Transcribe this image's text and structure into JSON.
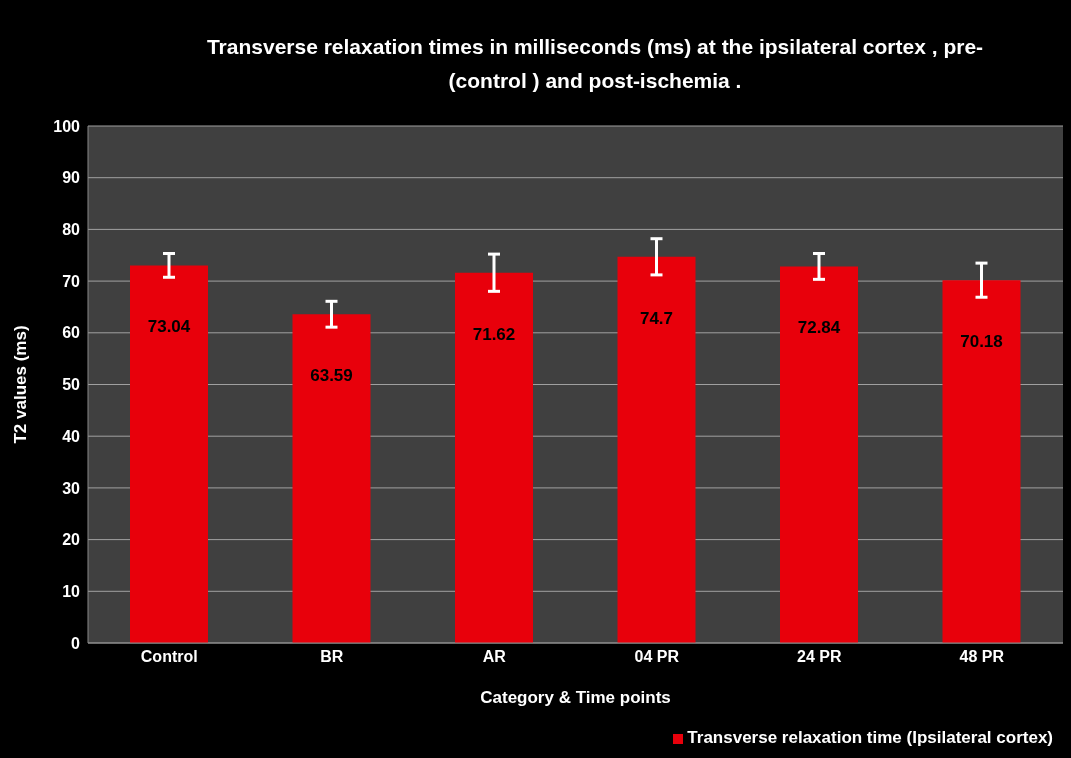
{
  "chart_data": {
    "type": "bar",
    "title": "Transverse relaxation times in milliseconds (ms) at the  ipsilateral cortex , pre-(control ) and post-ischemia .",
    "xlabel": "Category & Time points",
    "ylabel": "T2 values  (ms)",
    "categories": [
      "Control",
      "BR",
      "AR",
      "04 PR",
      "24 PR",
      "48 PR"
    ],
    "series": [
      {
        "name": "Transverse relaxation time (Ipsilateral  cortex)",
        "color": "#e8000b",
        "values": [
          73.04,
          63.59,
          71.62,
          74.7,
          72.84,
          70.18
        ],
        "errors": [
          2.3,
          2.5,
          3.6,
          3.5,
          2.5,
          3.3
        ]
      }
    ],
    "ylim": [
      0,
      100
    ],
    "yticks": [
      0,
      10,
      20,
      30,
      40,
      50,
      60,
      70,
      80,
      90,
      100
    ],
    "grid": "y",
    "legend": "bottom right",
    "data_labels": true
  }
}
